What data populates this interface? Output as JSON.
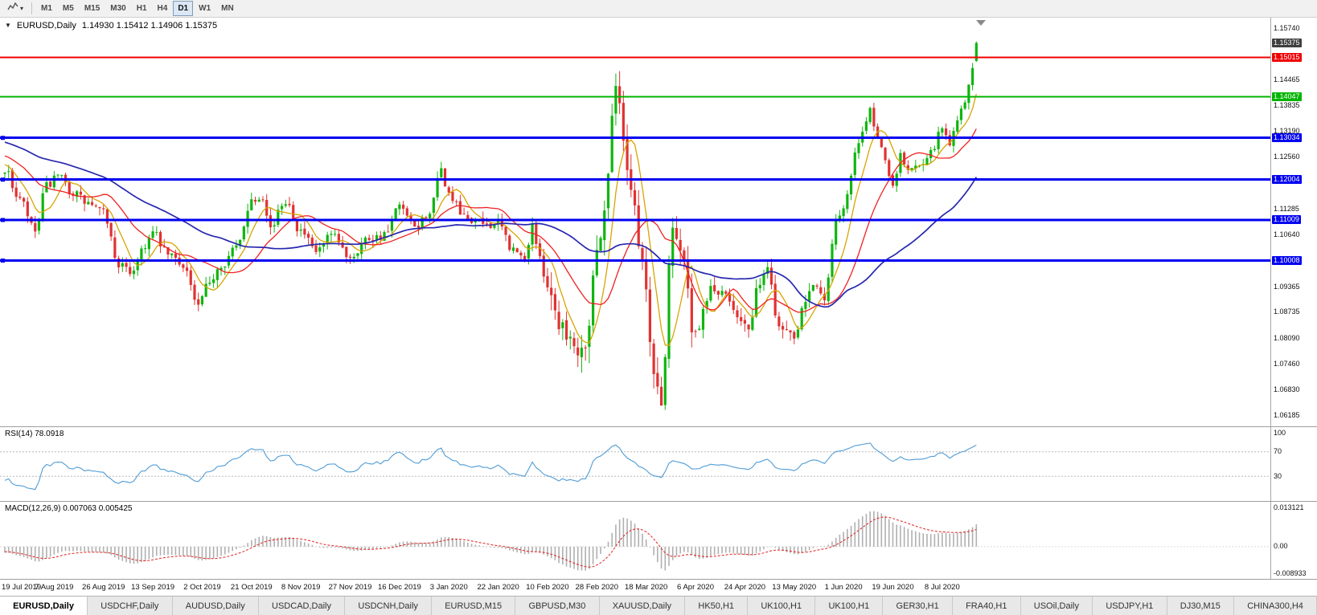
{
  "toolbar": {
    "timeframes": [
      {
        "label": "M1",
        "active": false
      },
      {
        "label": "M5",
        "active": false
      },
      {
        "label": "M15",
        "active": false
      },
      {
        "label": "M30",
        "active": false
      },
      {
        "label": "H1",
        "active": false
      },
      {
        "label": "H4",
        "active": false
      },
      {
        "label": "D1",
        "active": true
      },
      {
        "label": "W1",
        "active": false
      },
      {
        "label": "MN",
        "active": false
      }
    ]
  },
  "chart": {
    "title_symbol": "EURUSD,Daily",
    "title_ohlc": "1.14930 1.15412 1.14906 1.15375",
    "colors": {
      "candle_up": "#0fb50f",
      "candle_down": "#e03232",
      "ma_fast": "#d8a400",
      "ma_medium": "#f02020",
      "ma_slow": "#2727b0",
      "hline_red": "#f00000",
      "hline_green": "#00b400",
      "hline_blue": "#0000f0",
      "rsi_line": "#4f9bd5",
      "macd_hist": "#b0b0b0",
      "macd_signal": "#e02020"
    },
    "price_axis": {
      "range": [
        1.06,
        1.158
      ],
      "labels": [
        "1.15740",
        "1.14465",
        "1.13835",
        "1.13190",
        "1.12560",
        "1.11285",
        "1.10640",
        "1.09365",
        "1.08735",
        "1.08090",
        "1.07460",
        "1.06830",
        "1.06185"
      ],
      "highlighted": [
        {
          "value": "1.15375",
          "bg": "#3f3f3f",
          "role": "current-price"
        },
        {
          "value": "1.15015",
          "bg": "#f00000",
          "role": "resistance-line"
        },
        {
          "value": "1.14047",
          "bg": "#00b400",
          "role": "support-line"
        },
        {
          "value": "1.13034",
          "bg": "#0000f0",
          "role": "level-line"
        },
        {
          "value": "1.12004",
          "bg": "#0000f0",
          "role": "level-line"
        },
        {
          "value": "1.11009",
          "bg": "#0000f0",
          "role": "level-line"
        },
        {
          "value": "1.10008",
          "bg": "#0000f0",
          "role": "level-line"
        }
      ]
    },
    "hlines": [
      {
        "price": 1.15015,
        "color": "#f00000",
        "width": 2,
        "handle": false
      },
      {
        "price": 1.14047,
        "color": "#00b400",
        "width": 2,
        "handle": false
      },
      {
        "price": 1.13034,
        "color": "#0000f0",
        "width": 3,
        "handle": true
      },
      {
        "price": 1.12004,
        "color": "#0000f0",
        "width": 3,
        "handle": true
      },
      {
        "price": 1.11009,
        "color": "#0000f0",
        "width": 3,
        "handle": true
      },
      {
        "price": 1.10008,
        "color": "#0000f0",
        "width": 3,
        "handle": true
      }
    ]
  },
  "rsi": {
    "label": "RSI(14) 78.0918",
    "axis_labels": [
      "100",
      "70",
      "30"
    ],
    "levels": [
      70,
      30
    ]
  },
  "macd": {
    "label": "MACD(12,26,9) 0.007063 0.005425",
    "axis_top": "0.013121",
    "axis_zero": "0.00",
    "axis_bottom": "-0.008933"
  },
  "date_axis": {
    "labels": [
      "19 Jul 2019",
      "7 Aug 2019",
      "26 Aug 2019",
      "13 Sep 2019",
      "2 Oct 2019",
      "21 Oct 2019",
      "8 Nov 2019",
      "27 Nov 2019",
      "16 Dec 2019",
      "3 Jan 2020",
      "22 Jan 2020",
      "10 Feb 2020",
      "28 Feb 2020",
      "18 Mar 2020",
      "6 Apr 2020",
      "24 Apr 2020",
      "13 May 2020",
      "1 Jun 2020",
      "19 Jun 2020",
      "8 Jul 2020"
    ]
  },
  "tabs": [
    {
      "label": "EURUSD,Daily",
      "active": true
    },
    {
      "label": "USDCHF,Daily",
      "active": false
    },
    {
      "label": "AUDUSD,Daily",
      "active": false
    },
    {
      "label": "USDCAD,Daily",
      "active": false
    },
    {
      "label": "USDCNH,Daily",
      "active": false
    },
    {
      "label": "EURUSD,M15",
      "active": false
    },
    {
      "label": "GBPUSD,M30",
      "active": false
    },
    {
      "label": "XAUUSD,Daily",
      "active": false
    },
    {
      "label": "HK50,H1",
      "active": false
    },
    {
      "label": "UK100,H1",
      "active": false
    },
    {
      "label": "UK100,H1",
      "active": false
    },
    {
      "label": "GER30,H1",
      "active": false
    },
    {
      "label": "FRA40,H1",
      "active": false
    },
    {
      "label": "USOil,Daily",
      "active": false
    },
    {
      "label": "USDJPY,H1",
      "active": false
    },
    {
      "label": "DJ30,M15",
      "active": false
    },
    {
      "label": "CHINA300,H4",
      "active": false
    }
  ],
  "chart_data": {
    "type": "candlestick",
    "symbol": "EURUSD",
    "timeframe": "Daily",
    "ohlc_current": {
      "open": 1.1493,
      "high": 1.15412,
      "low": 1.14906,
      "close": 1.15375
    },
    "x_labels": [
      "19 Jul 2019",
      "7 Aug 2019",
      "26 Aug 2019",
      "13 Sep 2019",
      "2 Oct 2019",
      "21 Oct 2019",
      "8 Nov 2019",
      "27 Nov 2019",
      "16 Dec 2019",
      "3 Jan 2020",
      "22 Jan 2020",
      "10 Feb 2020",
      "28 Feb 2020",
      "18 Mar 2020",
      "6 Apr 2020",
      "24 Apr 2020",
      "13 May 2020",
      "1 Jun 2020",
      "19 Jun 2020",
      "8 Jul 2020"
    ],
    "candles_per_label": 13,
    "candle_count": 257,
    "price_range": [
      1.06,
      1.158
    ],
    "grid": false,
    "horizontal_levels": [
      1.15015,
      1.14047,
      1.13034,
      1.12004,
      1.11009,
      1.10008
    ],
    "price_path": [
      [
        -50,
        1.1355
      ],
      [
        -35,
        1.131
      ],
      [
        -20,
        1.1298
      ],
      [
        -10,
        1.1272
      ],
      [
        -4,
        1.1246
      ],
      [
        0,
        1.1222
      ],
      [
        4,
        1.115
      ],
      [
        8,
        1.1072
      ],
      [
        11,
        1.1185
      ],
      [
        14,
        1.1206
      ],
      [
        18,
        1.1168
      ],
      [
        22,
        1.1141
      ],
      [
        26,
        1.1118
      ],
      [
        30,
        1.0992
      ],
      [
        33,
        1.0972
      ],
      [
        37,
        1.104
      ],
      [
        39,
        1.1068
      ],
      [
        43,
        1.1016
      ],
      [
        47,
        1.0992
      ],
      [
        51,
        1.0886
      ],
      [
        53,
        1.0932
      ],
      [
        57,
        1.0992
      ],
      [
        61,
        1.1032
      ],
      [
        65,
        1.115
      ],
      [
        68,
        1.1162
      ],
      [
        70,
        1.1082
      ],
      [
        74,
        1.115
      ],
      [
        78,
        1.1072
      ],
      [
        82,
        1.1022
      ],
      [
        86,
        1.106
      ],
      [
        91,
        1.1012
      ],
      [
        96,
        1.1058
      ],
      [
        100,
        1.1062
      ],
      [
        104,
        1.1132
      ],
      [
        108,
        1.1082
      ],
      [
        112,
        1.112
      ],
      [
        115,
        1.1222
      ],
      [
        117,
        1.1162
      ],
      [
        121,
        1.1106
      ],
      [
        126,
        1.1092
      ],
      [
        130,
        1.109
      ],
      [
        134,
        1.1026
      ],
      [
        137,
        1.1002
      ],
      [
        139,
        1.1092
      ],
      [
        141,
        1.1
      ],
      [
        143,
        1.0946
      ],
      [
        146,
        1.0852
      ],
      [
        151,
        1.0786
      ],
      [
        153,
        1.0802
      ],
      [
        156,
        1.102
      ],
      [
        158,
        1.113
      ],
      [
        161,
        1.1448
      ],
      [
        163,
        1.13
      ],
      [
        165,
        1.1186
      ],
      [
        168,
        1.0996
      ],
      [
        171,
        1.0722
      ],
      [
        173,
        1.0652
      ],
      [
        176,
        1.11
      ],
      [
        178,
        1.1032
      ],
      [
        182,
        1.0802
      ],
      [
        186,
        1.093
      ],
      [
        190,
        1.0912
      ],
      [
        194,
        1.0862
      ],
      [
        196,
        1.0824
      ],
      [
        199,
        1.0952
      ],
      [
        201,
        1.0978
      ],
      [
        204,
        1.0842
      ],
      [
        208,
        1.082
      ],
      [
        211,
        1.0912
      ],
      [
        213,
        1.0948
      ],
      [
        216,
        1.09
      ],
      [
        219,
        1.1098
      ],
      [
        221,
        1.1134
      ],
      [
        225,
        1.1288
      ],
      [
        228,
        1.1372
      ],
      [
        230,
        1.1302
      ],
      [
        234,
        1.1192
      ],
      [
        236,
        1.1258
      ],
      [
        238,
        1.1222
      ],
      [
        241,
        1.124
      ],
      [
        244,
        1.1268
      ],
      [
        247,
        1.1328
      ],
      [
        249,
        1.1292
      ],
      [
        251,
        1.1342
      ],
      [
        253,
        1.14
      ],
      [
        255,
        1.1468
      ],
      [
        256,
        1.1537
      ]
    ],
    "volatility": [
      {
        "from": -50,
        "to": 143,
        "vol": 0.0042
      },
      {
        "from": 143,
        "to": 185,
        "vol": 0.009
      },
      {
        "from": 185,
        "to": 218,
        "vol": 0.005
      },
      {
        "from": 218,
        "to": 257,
        "vol": 0.0038
      }
    ],
    "moving_averages": [
      {
        "period": 7,
        "color": "#d8a400",
        "name": "fast"
      },
      {
        "period": 18,
        "color": "#f02020",
        "name": "medium"
      },
      {
        "period": 48,
        "color": "#2727b0",
        "name": "slow"
      }
    ],
    "indicators": [
      {
        "type": "rsi",
        "period": 14,
        "current": 78.0918,
        "levels": [
          70,
          30
        ],
        "range": [
          0,
          100
        ]
      },
      {
        "type": "macd",
        "fast": 12,
        "slow": 26,
        "signal": 9,
        "current_main": 0.007063,
        "current_signal": 0.005425,
        "axis_max": 0.013121,
        "axis_min": -0.008933
      }
    ],
    "last_candle": {
      "open": 1.1493,
      "high": 1.15412,
      "low": 1.14906,
      "close": 1.15375
    }
  }
}
